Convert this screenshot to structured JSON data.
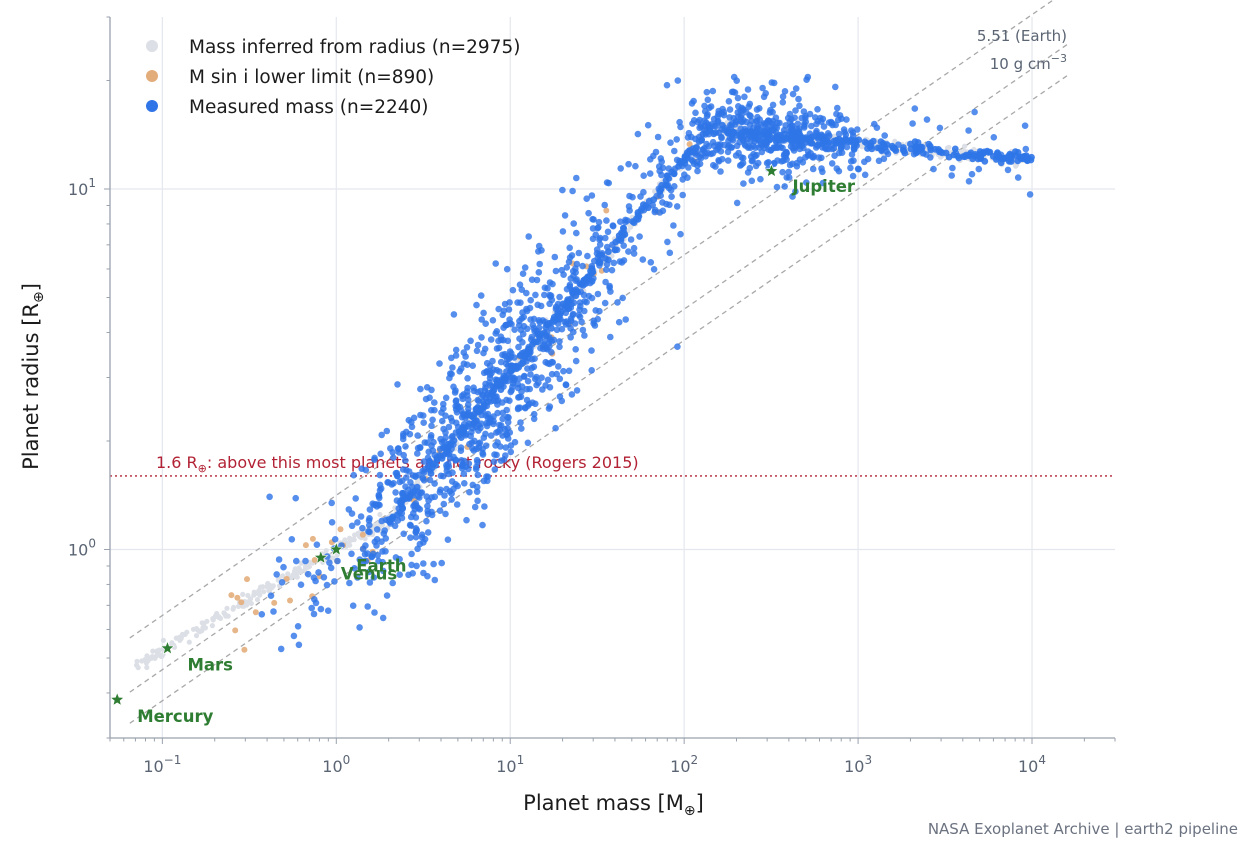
{
  "chart_data": {
    "type": "scatter",
    "title": "",
    "xlabel": "Planet mass  [M",
    "xlabel_sub": "⊕",
    "xlabel_end": "]",
    "ylabel": "Planet radius  [R",
    "ylabel_sub": "⊕",
    "ylabel_end": "]",
    "x_scale": "log",
    "y_scale": "log",
    "xlim": [
      0.05,
      30000
    ],
    "ylim": [
      0.3,
      30
    ],
    "x_ticks": [
      {
        "value": 0.1,
        "base": "10",
        "exp": "−1"
      },
      {
        "value": 1,
        "base": "10",
        "exp": "0"
      },
      {
        "value": 10,
        "base": "10",
        "exp": "1"
      },
      {
        "value": 100,
        "base": "10",
        "exp": "2"
      },
      {
        "value": 1000,
        "base": "10",
        "exp": "3"
      },
      {
        "value": 10000,
        "base": "10",
        "exp": "4"
      }
    ],
    "y_ticks": [
      {
        "value": 1,
        "base": "10",
        "exp": "0"
      },
      {
        "value": 10,
        "base": "10",
        "exp": "1"
      }
    ],
    "grid": true,
    "legend_position": "top-left",
    "series": [
      {
        "name": "Mass inferred from radius (n=2975)",
        "color": "#dcdfe6",
        "count": 2975
      },
      {
        "name": "M sin i lower limit (n=890)",
        "color": "#e3ad7b",
        "count": 890
      },
      {
        "name": "Measured mass (n=2240)",
        "color": "#2f75e8",
        "count": 2240
      }
    ],
    "solar_system": [
      {
        "name": "Mercury",
        "mass": 0.055,
        "radius": 0.383
      },
      {
        "name": "Mars",
        "mass": 0.107,
        "radius": 0.532
      },
      {
        "name": "Venus",
        "mass": 0.815,
        "radius": 0.949
      },
      {
        "name": "Earth",
        "mass": 1.0,
        "radius": 1.0
      },
      {
        "name": "Jupiter",
        "mass": 317.8,
        "radius": 11.21
      }
    ],
    "density_lines": [
      {
        "label": "5.51 (Earth)"
      },
      {
        "label": "10 g cm",
        "sup": "−3"
      }
    ],
    "rocky_threshold": {
      "value": 1.6,
      "label_prefix": "1.6 R",
      "label_sub": "⊕",
      "label_rest": ": above this most planets are not rocky (Rogers 2015)"
    }
  },
  "colors": {
    "inferred": "#dcdfe6",
    "msini": "#e3ad7b",
    "measured": "#2f75e8",
    "solar": "#2e7d32",
    "threshold": "#b22234",
    "density": "#a8a8a8"
  },
  "footer": {
    "credit": "NASA Exoplanet Archive | earth2 pipeline"
  }
}
